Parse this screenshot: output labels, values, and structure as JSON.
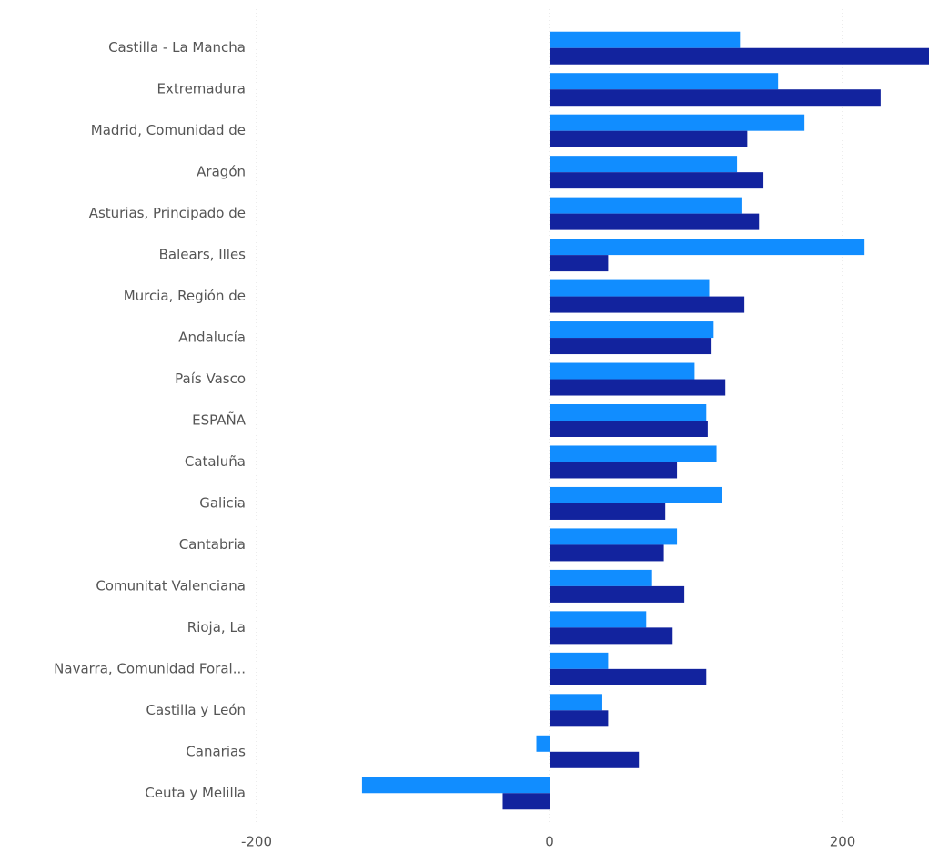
{
  "chart_data": {
    "type": "hbar",
    "categories": [
      "Castilla - La Mancha",
      "Extremadura",
      "Madrid, Comunidad de",
      "Aragón",
      "Asturias, Principado de",
      "Balears, Illes",
      "Murcia, Región de",
      "Andalucía",
      "País Vasco",
      "ESPAÑA",
      "Cataluña",
      "Galicia",
      "Cantabria",
      "Comunitat Valenciana",
      "Rioja, La",
      "Navarra, Comunidad Foral...",
      "Castilla y León",
      "Canarias",
      "Ceuta y Melilla"
    ],
    "series": [
      {
        "color": "#118dff",
        "values": [
          130,
          156,
          174,
          128,
          131,
          215,
          109,
          112,
          99,
          107,
          114,
          118,
          87,
          70,
          66,
          40,
          36,
          -9,
          -128
        ]
      },
      {
        "color": "#12239e",
        "values": [
          259,
          226,
          135,
          146,
          143,
          40,
          133,
          110,
          120,
          108,
          87,
          79,
          78,
          92,
          84,
          107,
          40,
          61,
          -32
        ]
      }
    ],
    "xlim": [
      -200,
      259
    ],
    "xticks": [
      -200,
      0,
      200
    ],
    "grid": true
  }
}
